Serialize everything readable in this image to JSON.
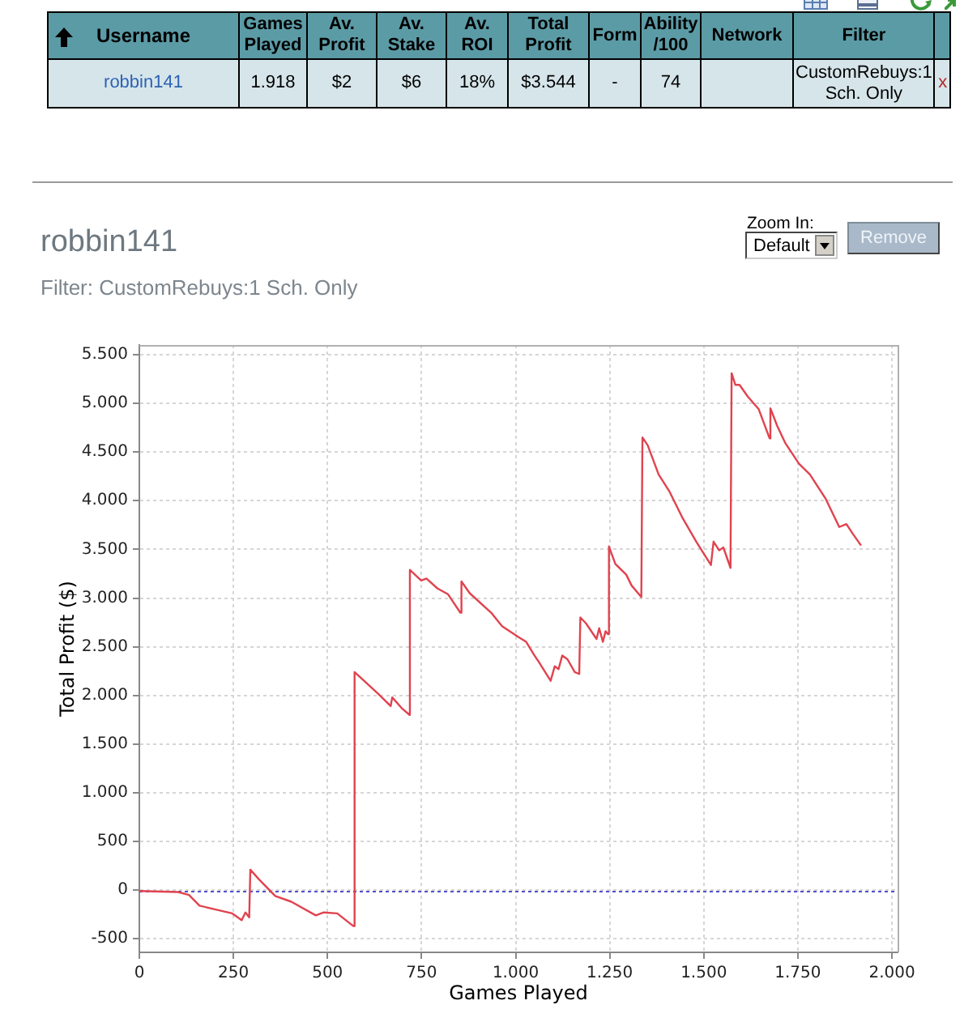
{
  "chart_data": [
    {
      "type": "other",
      "categories": [
        "Username",
        "Games Played",
        "Av. Profit",
        "Av. Stake",
        "Av. ROI",
        "Total Profit",
        "Form",
        "Ability /100",
        "Network",
        "Filter",
        null
      ],
      "cell_labels": [
        [
          "robbin141",
          "1.918",
          "$2",
          "$6",
          "18%",
          "$3.544",
          "-",
          "74",
          null,
          "CustomRebuys:1 Sch. Only",
          "x"
        ]
      ]
    },
    {
      "type": "line",
      "title": "robbin141",
      "subtitle": "Filter: CustomRebuys:1 Sch. Only",
      "xlabel": "Games Played",
      "ylabel": "Total Profit ($)",
      "annotations": [
        "Zoom In:",
        "Default",
        "Remove"
      ],
      "x": [
        0,
        103,
        132,
        160,
        203,
        247,
        272,
        282,
        292,
        295,
        318,
        361,
        404,
        469,
        490,
        526,
        562,
        569,
        572,
        634,
        668,
        672,
        697,
        718,
        719,
        749,
        763,
        792,
        820,
        853,
        856,
        878,
        935,
        964,
        1007,
        1028,
        1050,
        1064,
        1093,
        1104,
        1114,
        1124,
        1138,
        1157,
        1169,
        1172,
        1187,
        1215,
        1222,
        1232,
        1239,
        1245,
        1248,
        1265,
        1294,
        1308,
        1334,
        1337,
        1351,
        1380,
        1408,
        1444,
        1480,
        1519,
        1526,
        1541,
        1552,
        1571,
        1574,
        1584,
        1595,
        1617,
        1646,
        1675,
        1677,
        1695,
        1717,
        1753,
        1782,
        1824,
        1860,
        1879,
        1896,
        1918
      ],
      "values": [
        -10,
        -20,
        -50,
        -160,
        -200,
        -240,
        -310,
        -230,
        -280,
        210,
        110,
        -60,
        -120,
        -260,
        -230,
        -240,
        -350,
        -370,
        2240,
        2020,
        1890,
        1980,
        1870,
        1800,
        3290,
        3180,
        3200,
        3100,
        3040,
        2850,
        3170,
        3050,
        2850,
        2710,
        2600,
        2550,
        2410,
        2330,
        2150,
        2300,
        2270,
        2410,
        2370,
        2240,
        2220,
        2800,
        2740,
        2580,
        2690,
        2550,
        2660,
        2630,
        3530,
        3350,
        3240,
        3130,
        3010,
        4650,
        4570,
        4270,
        4100,
        3820,
        3580,
        3340,
        3580,
        3490,
        3520,
        3310,
        5310,
        5190,
        5190,
        5070,
        4940,
        4640,
        4950,
        4770,
        4590,
        4380,
        4270,
        4020,
        3730,
        3760,
        3660,
        3540
      ],
      "color": "#e0434f",
      "xlim": [
        0,
        2015
      ],
      "ylim": [
        -640,
        5600
      ],
      "xticks": [
        0,
        250,
        500,
        750,
        {
          "value": 1000,
          "label": "1.000"
        },
        {
          "value": 1250,
          "label": "1.250"
        },
        {
          "value": 1500,
          "label": "1.500"
        },
        {
          "value": 1750,
          "label": "1.750"
        },
        {
          "value": 2000,
          "label": "2.000"
        }
      ],
      "yticks": [
        -500,
        0,
        500,
        {
          "value": 1000,
          "label": "1.000"
        },
        {
          "value": 1500,
          "label": "1.500"
        },
        {
          "value": 2000,
          "label": "2.000"
        },
        {
          "value": 2500,
          "label": "2.500"
        },
        {
          "value": 3000,
          "label": "3.000"
        },
        {
          "value": 3500,
          "label": "3.500"
        },
        {
          "value": 4000,
          "label": "4.000"
        },
        {
          "value": 4500,
          "label": "4.500"
        },
        {
          "value": 5000,
          "label": "5.000"
        },
        {
          "value": 5500,
          "label": "5.500"
        }
      ],
      "grid": true,
      "ref_lines": [
        {
          "axis": "y",
          "value": 0,
          "color": "#5050d0",
          "line_style": "dotted"
        }
      ]
    }
  ]
}
